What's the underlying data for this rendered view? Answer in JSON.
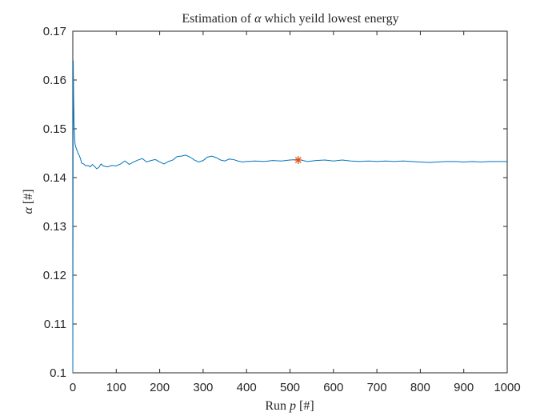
{
  "chart_data": {
    "type": "line",
    "title_parts": [
      "Estimation of ",
      "α",
      " which yeild lowest energy"
    ],
    "xlabel_parts": [
      "Run ",
      "p",
      " [#]"
    ],
    "ylabel_parts": [
      "α",
      " [#]"
    ],
    "xlim": [
      0,
      1000
    ],
    "ylim": [
      0.1,
      0.17
    ],
    "xticks": [
      0,
      100,
      200,
      300,
      400,
      500,
      600,
      700,
      800,
      900,
      1000
    ],
    "yticks": [
      0.1,
      0.11,
      0.12,
      0.13,
      0.14,
      0.15,
      0.16,
      0.17
    ],
    "ytick_labels": [
      "0.1",
      "0.11",
      "0.12",
      "0.13",
      "0.14",
      "0.15",
      "0.16",
      "0.17"
    ],
    "grid": false,
    "series": [
      {
        "color": "#0072BD",
        "x": [
          0,
          1,
          2,
          3,
          4,
          5,
          6,
          8,
          10,
          12,
          15,
          18,
          20,
          25,
          30,
          35,
          40,
          45,
          50,
          55,
          60,
          65,
          70,
          80,
          90,
          100,
          110,
          120,
          130,
          140,
          150,
          160,
          170,
          180,
          190,
          200,
          210,
          220,
          230,
          240,
          250,
          260,
          270,
          280,
          290,
          300,
          310,
          320,
          330,
          340,
          350,
          360,
          370,
          380,
          390,
          400,
          420,
          440,
          460,
          480,
          500,
          520,
          540,
          560,
          580,
          600,
          620,
          640,
          660,
          680,
          700,
          720,
          740,
          760,
          780,
          800,
          820,
          840,
          860,
          880,
          900,
          920,
          940,
          960,
          980,
          1000
        ],
        "y": [
          0.1,
          0.164,
          0.156,
          0.151,
          0.149,
          0.147,
          0.1465,
          0.146,
          0.1455,
          0.145,
          0.1445,
          0.1438,
          0.143,
          0.1428,
          0.1424,
          0.1425,
          0.1422,
          0.1427,
          0.1423,
          0.1418,
          0.1421,
          0.1428,
          0.1424,
          0.1422,
          0.1425,
          0.1424,
          0.1428,
          0.1434,
          0.1427,
          0.1432,
          0.1436,
          0.1439,
          0.1432,
          0.1435,
          0.1437,
          0.1432,
          0.1428,
          0.1433,
          0.1436,
          0.1443,
          0.1444,
          0.1446,
          0.1442,
          0.1436,
          0.1432,
          0.1435,
          0.1442,
          0.1444,
          0.1441,
          0.1436,
          0.1434,
          0.1438,
          0.1437,
          0.1434,
          0.1432,
          0.1433,
          0.1434,
          0.1433,
          0.1435,
          0.1434,
          0.1436,
          0.1437,
          0.1433,
          0.1435,
          0.1436,
          0.1434,
          0.1436,
          0.1434,
          0.1433,
          0.1434,
          0.1433,
          0.1434,
          0.1433,
          0.1434,
          0.1433,
          0.1432,
          0.1431,
          0.1432,
          0.1433,
          0.1433,
          0.1432,
          0.1433,
          0.1432,
          0.1433,
          0.1433,
          0.1433
        ]
      }
    ],
    "marker": {
      "x": 519,
      "y": 0.1436,
      "symbol": "asterisk",
      "color": "#D95319"
    }
  }
}
